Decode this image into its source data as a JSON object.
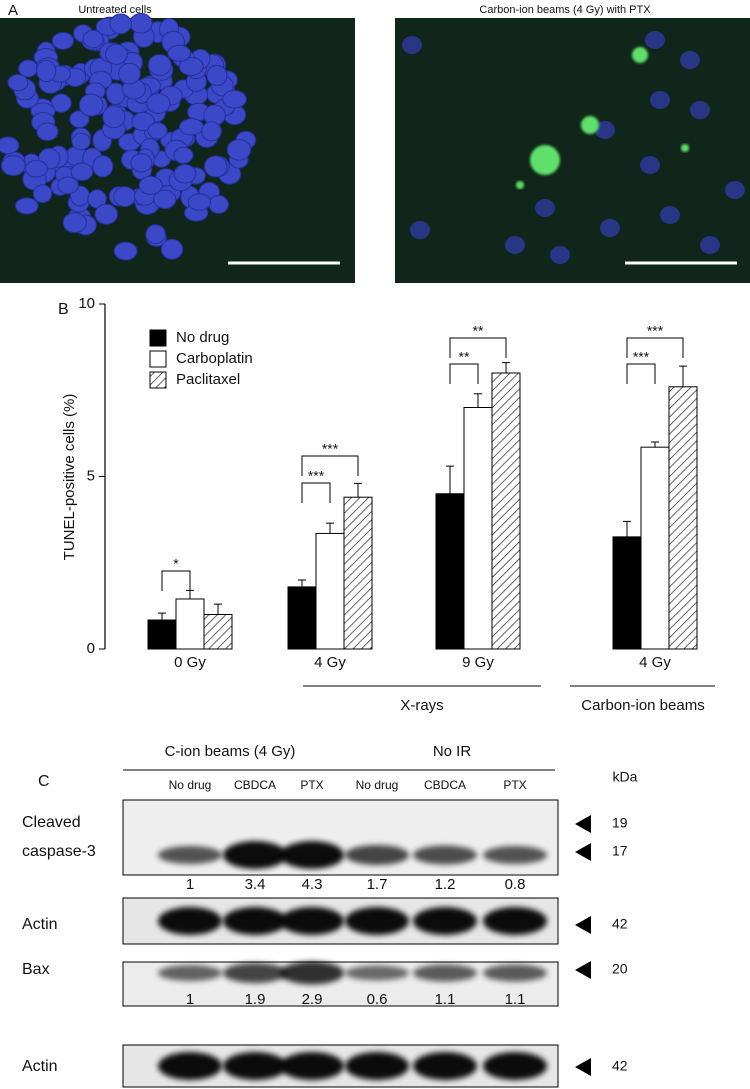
{
  "panels": {
    "a": "A",
    "b": "B",
    "c": "C"
  },
  "panel_a": {
    "images": [
      {
        "caption": "Untreated cells"
      },
      {
        "caption": "Carbon-ion beams (4 Gy) with PTX"
      }
    ]
  },
  "chart_data": {
    "type": "bar",
    "ylabel": "TUNEL-positive cells (%)",
    "categories": [
      "0 Gy",
      "4 Gy",
      "9 Gy",
      "4 Gy"
    ],
    "group_labels": [
      "X-rays",
      "Carbon-ion beams"
    ],
    "series": [
      {
        "name": "No drug",
        "color": "#000000",
        "values": [
          0.84,
          1.8,
          4.5,
          3.25
        ],
        "errors": [
          0.2,
          0.2,
          0.8,
          0.45
        ]
      },
      {
        "name": "Carboplatin",
        "color": "#ffffff",
        "values": [
          1.45,
          3.35,
          7.0,
          5.85
        ],
        "errors": [
          0.25,
          0.3,
          0.4,
          0.15
        ]
      },
      {
        "name": "Paclitaxel",
        "color": "#ffffff",
        "hatch": true,
        "values": [
          1.0,
          4.4,
          8.0,
          7.6
        ],
        "errors": [
          0.3,
          0.4,
          0.3,
          0.6
        ]
      }
    ],
    "annotations": [
      "*",
      "***",
      "***",
      "**",
      "**",
      "***",
      "***"
    ],
    "ylim": [
      0,
      10
    ],
    "yticks": [
      0,
      5,
      10
    ],
    "grid": false,
    "legend": "top-left"
  },
  "blot": {
    "groups": [
      "C-ion beams (4 Gy)",
      "No IR"
    ],
    "lanes": [
      "No drug",
      "CBDCA",
      "PTX",
      "No drug",
      "CBDCA",
      "PTX"
    ],
    "unit": "kDa",
    "rows": [
      {
        "label": [
          "Cleaved",
          "caspase-3"
        ],
        "markers": [
          "19",
          "17"
        ],
        "quant": [
          1,
          3.4,
          4.3,
          1.7,
          1.2,
          0.8
        ]
      },
      {
        "label": [
          "Actin"
        ],
        "markers": [
          "42"
        ]
      },
      {
        "label": [
          "Bax"
        ],
        "markers": [
          "20"
        ],
        "quant": [
          1,
          1.9,
          2.9,
          0.6,
          1.1,
          1.1
        ]
      },
      {
        "label": [
          "Actin"
        ],
        "markers": [
          "42"
        ]
      }
    ]
  }
}
